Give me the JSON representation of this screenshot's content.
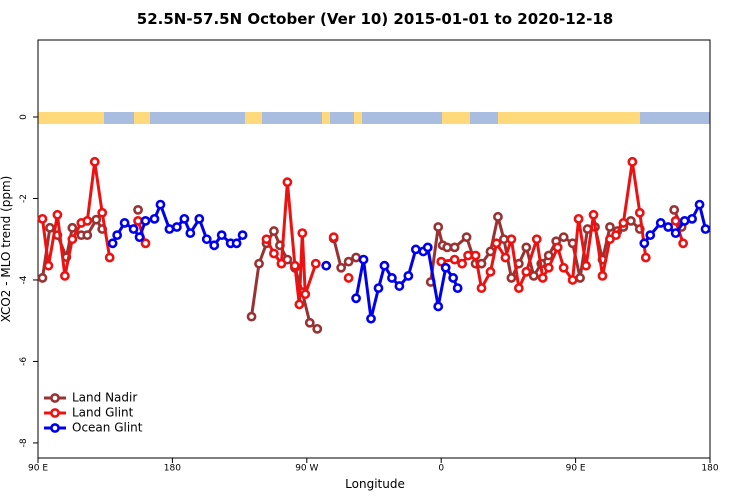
{
  "chart_data": {
    "type": "line",
    "title": "52.5N-57.5N October (Ver 10)   2015-01-01 to 2020-12-18",
    "x_label": "Longitude",
    "y_label": "XCO2 - MLO trend (ppm)",
    "xlim": [
      90,
      540
    ],
    "ylim": [
      -8.37,
      1.89
    ],
    "xticks": [
      {
        "value": 90,
        "label": "90 E"
      },
      {
        "value": 180,
        "label": "180"
      },
      {
        "value": 270,
        "label": "90 W"
      },
      {
        "value": 360,
        "label": "0"
      },
      {
        "value": 450,
        "label": "90 E"
      },
      {
        "value": 540,
        "label": "180"
      }
    ],
    "yticks": [
      0,
      -2,
      -4,
      -6,
      -8
    ],
    "legend": "bottomleft",
    "series": [
      {
        "name": "Land Nadir",
        "color": "#993333",
        "x": [
          93,
          98,
          103,
          109,
          113,
          119,
          123,
          129,
          133,
          145,
          157,
          200,
          233,
          238,
          243,
          248,
          252,
          257,
          262,
          267,
          272,
          277,
          282,
          288,
          293,
          298,
          303,
          330,
          353,
          358,
          361,
          364,
          369,
          377,
          383,
          387,
          393,
          398,
          402,
          407,
          412,
          417,
          422,
          427,
          432,
          437,
          442,
          448,
          453,
          458,
          463,
          468,
          473,
          478,
          482,
          487,
          493,
          505,
          516,
          521
        ],
        "values": [
          -3.95,
          -2.72,
          -2.9,
          -3.44,
          -2.72,
          -2.9,
          -2.9,
          -2.52,
          -2.75,
          null,
          -2.28,
          null,
          -4.9,
          -3.6,
          -3.1,
          -2.8,
          -3.15,
          -3.5,
          -3.7,
          -4.3,
          -5.05,
          -5.2,
          null,
          -2.98,
          -3.7,
          -3.55,
          -3.45,
          null,
          -4.05,
          -2.7,
          -3.15,
          -3.2,
          -3.2,
          -2.95,
          -3.6,
          -3.6,
          -3.3,
          -2.45,
          -3.0,
          -3.95,
          -3.6,
          -3.2,
          -3.9,
          -3.6,
          -3.4,
          -3.05,
          -2.95,
          -3.1,
          -3.95,
          -2.75,
          -2.7,
          -3.5,
          -2.7,
          -2.8,
          -2.7,
          -2.55,
          -2.75,
          null,
          -2.28,
          -2.7
        ]
      },
      {
        "name": "Land Glint",
        "color": "#ee1111",
        "x": [
          93,
          97,
          103,
          108,
          113,
          119,
          123,
          128,
          133,
          138,
          145,
          157,
          162,
          200,
          243,
          248,
          253,
          257,
          262,
          265,
          267,
          269,
          276,
          280,
          288,
          292,
          298,
          330,
          360,
          369,
          374,
          378,
          383,
          387,
          393,
          397,
          403,
          407,
          412,
          417,
          424,
          428,
          432,
          438,
          442,
          448,
          452,
          457,
          462,
          468,
          473,
          477,
          482,
          488,
          493,
          497,
          505,
          517,
          522
        ],
        "values": [
          -2.5,
          -3.65,
          -2.4,
          -3.9,
          -3.0,
          -2.6,
          -2.55,
          -1.1,
          -2.35,
          -3.45,
          null,
          -2.55,
          -3.1,
          null,
          -3.0,
          -3.35,
          -3.6,
          -1.6,
          -3.65,
          -4.6,
          -2.85,
          -4.35,
          -3.6,
          null,
          -2.95,
          null,
          -3.95,
          null,
          -3.55,
          -3.5,
          -3.6,
          -3.4,
          -3.4,
          -4.2,
          -3.8,
          -3.1,
          -3.45,
          -3.0,
          -4.2,
          -3.8,
          -3.0,
          -3.95,
          -3.7,
          -3.2,
          -3.7,
          -4.0,
          -2.5,
          -3.65,
          -2.4,
          -3.9,
          -3.0,
          -2.9,
          -2.6,
          -1.1,
          -2.35,
          -3.45,
          null,
          -2.55,
          -3.1
        ]
      },
      {
        "name": "Ocean Glint",
        "color": "#0000ee",
        "x": [
          140,
          143,
          148,
          154,
          158,
          162,
          168,
          172,
          178,
          183,
          188,
          192,
          198,
          203,
          208,
          213,
          219,
          223,
          227,
          250,
          283,
          300,
          303,
          308,
          313,
          318,
          322,
          327,
          332,
          338,
          343,
          348,
          351,
          358,
          363,
          368,
          371,
          450,
          496,
          500,
          507,
          512,
          517,
          523,
          528,
          533,
          537
        ],
        "values": [
          -3.1,
          -2.9,
          -2.6,
          -2.75,
          -2.95,
          -2.55,
          -2.5,
          -2.15,
          -2.75,
          -2.7,
          -2.5,
          -2.85,
          -2.5,
          -3.0,
          -3.15,
          -2.9,
          -3.1,
          -3.1,
          -2.9,
          null,
          -3.65,
          null,
          -4.45,
          -3.5,
          -4.95,
          -4.2,
          -3.65,
          -3.95,
          -4.15,
          -3.9,
          -3.25,
          -3.3,
          -3.2,
          -4.65,
          -3.7,
          -3.95,
          -4.2,
          null,
          -3.1,
          -2.9,
          -2.6,
          -2.7,
          -2.85,
          -2.55,
          -2.5,
          -2.15,
          -2.75
        ]
      }
    ]
  }
}
